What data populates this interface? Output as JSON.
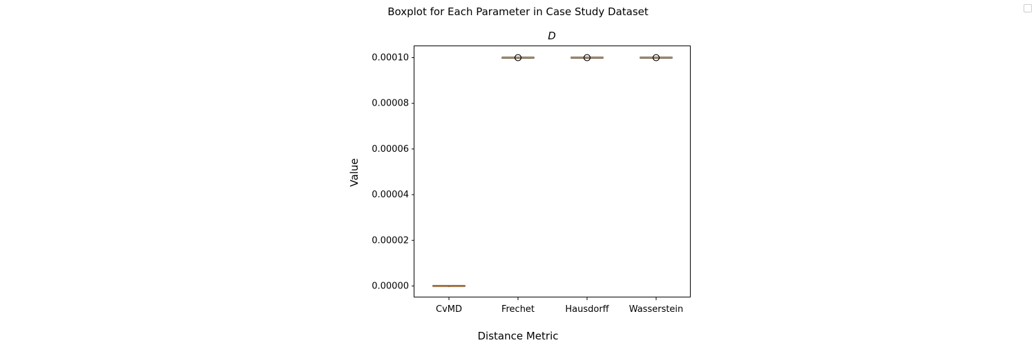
{
  "figure": {
    "suptitle": "Boxplot for Each Parameter in Case Study Dataset",
    "xlabel": "Distance Metric"
  },
  "chart_data": {
    "type": "box",
    "title": "D",
    "xlabel": "",
    "ylabel": "Value",
    "ylim": [
      -5e-06,
      0.000105
    ],
    "yticks": [
      0.0,
      2e-05,
      4e-05,
      6e-05,
      8e-05,
      0.0001
    ],
    "ytick_labels": [
      "0.00000",
      "0.00002",
      "0.00004",
      "0.00006",
      "0.00008",
      "0.00010"
    ],
    "categories": [
      "CvMD",
      "Frechet",
      "Hausdorff",
      "Wasserstein"
    ],
    "boxes": [
      {
        "category": "CvMD",
        "min": 0.0,
        "q1": 0.0,
        "median": 0.0,
        "q3": 0.0,
        "max": 0.0,
        "outliers": []
      },
      {
        "category": "Frechet",
        "min": 0.0001,
        "q1": 0.0001,
        "median": 0.0001,
        "q3": 0.0001,
        "max": 0.0001,
        "outliers": [
          0.0001
        ]
      },
      {
        "category": "Hausdorff",
        "min": 0.0001,
        "q1": 0.0001,
        "median": 0.0001,
        "q3": 0.0001,
        "max": 0.0001,
        "outliers": [
          0.0001
        ]
      },
      {
        "category": "Wasserstein",
        "min": 0.0001,
        "q1": 0.0001,
        "median": 0.0001,
        "q3": 0.0001,
        "max": 0.0001,
        "outliers": [
          0.0001
        ]
      }
    ],
    "grid": false,
    "legend": "top-right",
    "colors": {
      "box": "#000000",
      "median": "#e69138",
      "axes": "#000000"
    }
  }
}
